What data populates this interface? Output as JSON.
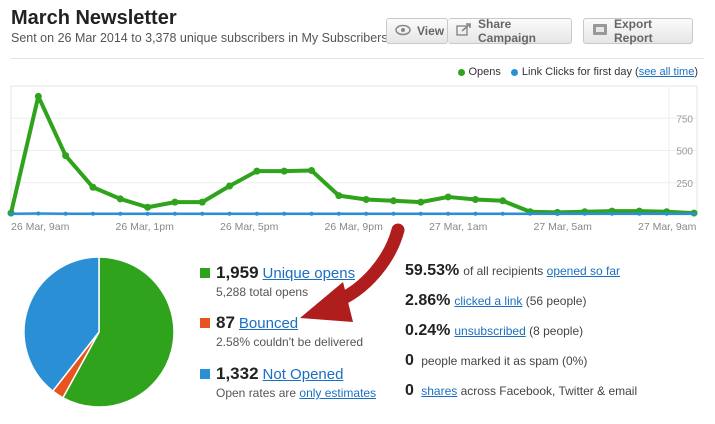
{
  "header": {
    "title": "March Newsletter",
    "subtitle": "Sent on 26 Mar 2014 to 3,378 unique subscribers in My Subscribers",
    "view_label": "View",
    "share_label": "Share Campaign",
    "export_label": "Export Report"
  },
  "legend": {
    "opens": "Opens",
    "clicks": "Link Clicks for first day",
    "see_all": "see all time"
  },
  "colors": {
    "opens": "#2ea31b",
    "clicks": "#2b8fd6",
    "bounced": "#e8541f",
    "arrow": "#b01d1d"
  },
  "chart_data": {
    "type": "line",
    "ylim": [
      0,
      1000
    ],
    "yticks": [
      "250",
      "500",
      "750"
    ],
    "x_tick_labels": [
      "26 Mar, 9am",
      "26 Mar, 1pm",
      "26 Mar, 5pm",
      "26 Mar, 9pm",
      "27 Mar, 1am",
      "27 Mar, 5am",
      "27 Mar, 9am"
    ],
    "series": [
      {
        "name": "Opens",
        "values": [
          15,
          920,
          460,
          215,
          125,
          60,
          100,
          100,
          225,
          340,
          340,
          345,
          150,
          120,
          110,
          100,
          140,
          120,
          110,
          25,
          20,
          25,
          30,
          30,
          25,
          15
        ]
      },
      {
        "name": "Link Clicks for first day",
        "values": [
          10,
          12,
          10,
          10,
          10,
          10,
          10,
          10,
          10,
          10,
          10,
          10,
          10,
          10,
          10,
          10,
          10,
          10,
          10,
          10,
          10,
          10,
          10,
          10,
          10,
          10
        ]
      }
    ]
  },
  "pie": {
    "opened": 1959,
    "bounced": 87,
    "not_opened": 1332
  },
  "stats": {
    "opens_num": "1,959",
    "opens_link": "Unique opens",
    "opens_sub": "5,288 total opens",
    "bounced_num": "87",
    "bounced_link": "Bounced",
    "bounced_sub": "2.58% couldn't be delivered",
    "notopen_num": "1,332",
    "notopen_link": "Not Opened",
    "notopen_sub_pre": "Open rates are ",
    "notopen_sub_link": "only estimates"
  },
  "right": {
    "r1_pct": "59.53%",
    "r1_text": "of all recipients ",
    "r1_link": "opened so far",
    "r2_pct": "2.86%",
    "r2_link": "clicked a link",
    "r2_text": " (56 people)",
    "r3_pct": "0.24%",
    "r3_link": "unsubscribed",
    "r3_text": " (8 people)",
    "r4_pct": "0",
    "r4_text": "people marked it as spam (0%)",
    "r5_pct": "0",
    "r5_link": "shares",
    "r5_text": " across Facebook, Twitter & email"
  }
}
